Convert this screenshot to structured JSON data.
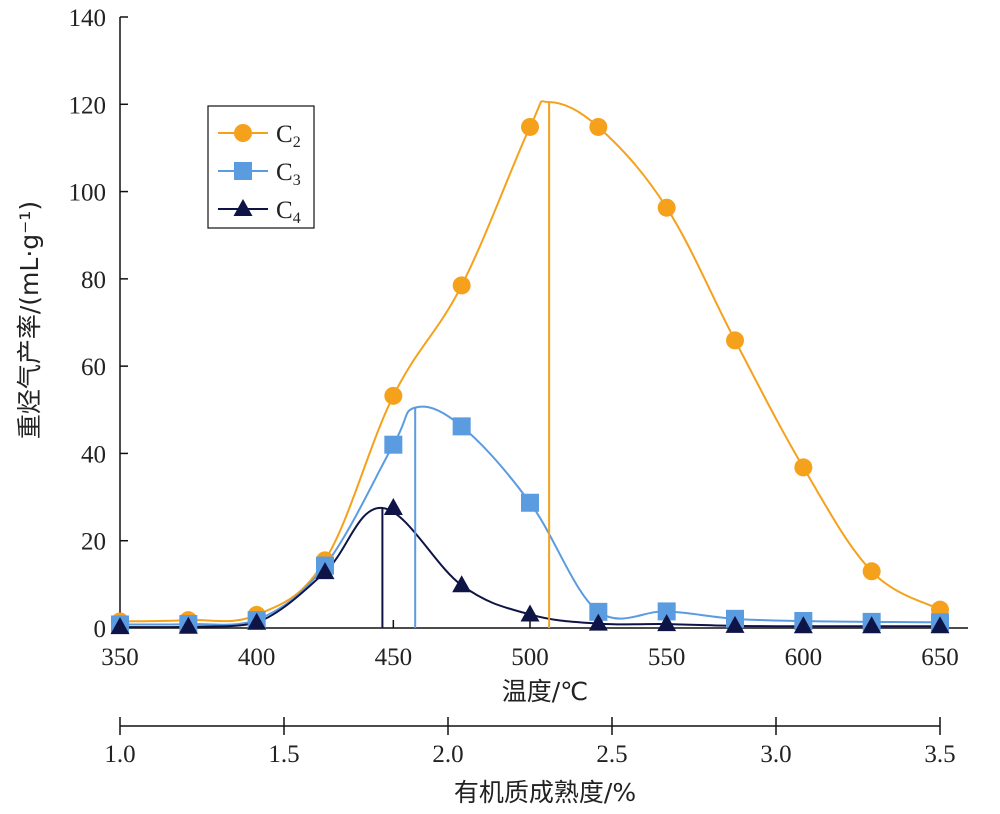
{
  "chart_data": {
    "type": "scatter",
    "ylabel": "重烃气产率/(mL·g⁻¹)",
    "xlabel": "温度/℃",
    "x2label": "有机质成熟度/%",
    "xlim": [
      350,
      650
    ],
    "ylim": [
      0,
      140
    ],
    "xticks": [
      "350",
      "400",
      "450",
      "500",
      "550",
      "600",
      "650"
    ],
    "yticks": [
      "0",
      "20",
      "40",
      "60",
      "80",
      "100",
      "120",
      "140"
    ],
    "x2lim": [
      1.0,
      3.5
    ],
    "x2ticks": [
      "1.0",
      "1.5",
      "2.0",
      "2.5",
      "3.0",
      "3.5"
    ],
    "legend": {
      "position": "upper-left"
    },
    "x": [
      350,
      375,
      400,
      425,
      450,
      475,
      500,
      525,
      550,
      575,
      600,
      625,
      650
    ],
    "series": [
      {
        "name": "C2",
        "name_base": "C",
        "name_sub": "2",
        "color": "#F5A11C",
        "marker": "circle",
        "values": [
          1.5,
          1.8,
          3.0,
          15.5,
          53.2,
          78.5,
          114.8,
          114.8,
          96.3,
          65.9,
          36.8,
          13.0,
          4.2
        ],
        "peak_x": 507,
        "peak_y": 120.5
      },
      {
        "name": "C3",
        "name_base": "C",
        "name_sub": "3",
        "color": "#5B9BE0",
        "marker": "square",
        "values": [
          0.8,
          0.9,
          1.8,
          14.3,
          42.0,
          46.2,
          28.7,
          3.7,
          3.8,
          2.1,
          1.6,
          1.4,
          1.3
        ],
        "peak_x": 458,
        "peak_y": 50.5
      },
      {
        "name": "C4",
        "name_base": "C",
        "name_sub": "4",
        "color": "#0E1446",
        "marker": "triangle",
        "values": [
          0.2,
          0.3,
          1.2,
          12.8,
          27.5,
          9.8,
          3.1,
          1.0,
          0.9,
          0.5,
          0.4,
          0.4,
          0.4
        ],
        "peak_x": 446,
        "peak_y": 27.5
      }
    ]
  }
}
